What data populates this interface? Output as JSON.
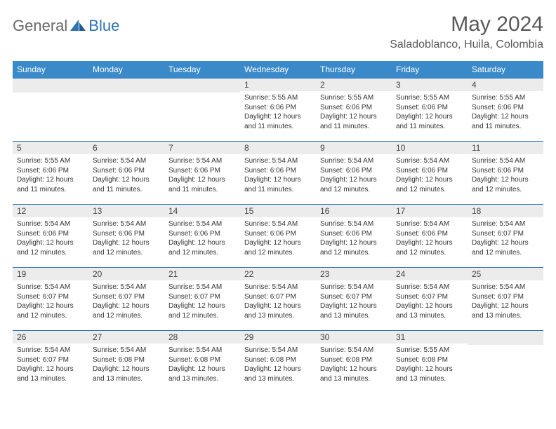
{
  "brand": {
    "general": "General",
    "blue": "Blue",
    "accent_color": "#2e74b5",
    "header_bg": "#3a8ac9",
    "text_color": "#595959"
  },
  "title": "May 2024",
  "location": "Saladoblanco, Huila, Colombia",
  "weekdays": [
    "Sunday",
    "Monday",
    "Tuesday",
    "Wednesday",
    "Thursday",
    "Friday",
    "Saturday"
  ],
  "weeks": [
    [
      {
        "n": "",
        "sr": "",
        "ss": "",
        "dl": ""
      },
      {
        "n": "",
        "sr": "",
        "ss": "",
        "dl": ""
      },
      {
        "n": "",
        "sr": "",
        "ss": "",
        "dl": ""
      },
      {
        "n": "1",
        "sr": "Sunrise: 5:55 AM",
        "ss": "Sunset: 6:06 PM",
        "dl": "Daylight: 12 hours and 11 minutes."
      },
      {
        "n": "2",
        "sr": "Sunrise: 5:55 AM",
        "ss": "Sunset: 6:06 PM",
        "dl": "Daylight: 12 hours and 11 minutes."
      },
      {
        "n": "3",
        "sr": "Sunrise: 5:55 AM",
        "ss": "Sunset: 6:06 PM",
        "dl": "Daylight: 12 hours and 11 minutes."
      },
      {
        "n": "4",
        "sr": "Sunrise: 5:55 AM",
        "ss": "Sunset: 6:06 PM",
        "dl": "Daylight: 12 hours and 11 minutes."
      }
    ],
    [
      {
        "n": "5",
        "sr": "Sunrise: 5:55 AM",
        "ss": "Sunset: 6:06 PM",
        "dl": "Daylight: 12 hours and 11 minutes."
      },
      {
        "n": "6",
        "sr": "Sunrise: 5:54 AM",
        "ss": "Sunset: 6:06 PM",
        "dl": "Daylight: 12 hours and 11 minutes."
      },
      {
        "n": "7",
        "sr": "Sunrise: 5:54 AM",
        "ss": "Sunset: 6:06 PM",
        "dl": "Daylight: 12 hours and 11 minutes."
      },
      {
        "n": "8",
        "sr": "Sunrise: 5:54 AM",
        "ss": "Sunset: 6:06 PM",
        "dl": "Daylight: 12 hours and 11 minutes."
      },
      {
        "n": "9",
        "sr": "Sunrise: 5:54 AM",
        "ss": "Sunset: 6:06 PM",
        "dl": "Daylight: 12 hours and 12 minutes."
      },
      {
        "n": "10",
        "sr": "Sunrise: 5:54 AM",
        "ss": "Sunset: 6:06 PM",
        "dl": "Daylight: 12 hours and 12 minutes."
      },
      {
        "n": "11",
        "sr": "Sunrise: 5:54 AM",
        "ss": "Sunset: 6:06 PM",
        "dl": "Daylight: 12 hours and 12 minutes."
      }
    ],
    [
      {
        "n": "12",
        "sr": "Sunrise: 5:54 AM",
        "ss": "Sunset: 6:06 PM",
        "dl": "Daylight: 12 hours and 12 minutes."
      },
      {
        "n": "13",
        "sr": "Sunrise: 5:54 AM",
        "ss": "Sunset: 6:06 PM",
        "dl": "Daylight: 12 hours and 12 minutes."
      },
      {
        "n": "14",
        "sr": "Sunrise: 5:54 AM",
        "ss": "Sunset: 6:06 PM",
        "dl": "Daylight: 12 hours and 12 minutes."
      },
      {
        "n": "15",
        "sr": "Sunrise: 5:54 AM",
        "ss": "Sunset: 6:06 PM",
        "dl": "Daylight: 12 hours and 12 minutes."
      },
      {
        "n": "16",
        "sr": "Sunrise: 5:54 AM",
        "ss": "Sunset: 6:06 PM",
        "dl": "Daylight: 12 hours and 12 minutes."
      },
      {
        "n": "17",
        "sr": "Sunrise: 5:54 AM",
        "ss": "Sunset: 6:06 PM",
        "dl": "Daylight: 12 hours and 12 minutes."
      },
      {
        "n": "18",
        "sr": "Sunrise: 5:54 AM",
        "ss": "Sunset: 6:07 PM",
        "dl": "Daylight: 12 hours and 12 minutes."
      }
    ],
    [
      {
        "n": "19",
        "sr": "Sunrise: 5:54 AM",
        "ss": "Sunset: 6:07 PM",
        "dl": "Daylight: 12 hours and 12 minutes."
      },
      {
        "n": "20",
        "sr": "Sunrise: 5:54 AM",
        "ss": "Sunset: 6:07 PM",
        "dl": "Daylight: 12 hours and 12 minutes."
      },
      {
        "n": "21",
        "sr": "Sunrise: 5:54 AM",
        "ss": "Sunset: 6:07 PM",
        "dl": "Daylight: 12 hours and 12 minutes."
      },
      {
        "n": "22",
        "sr": "Sunrise: 5:54 AM",
        "ss": "Sunset: 6:07 PM",
        "dl": "Daylight: 12 hours and 13 minutes."
      },
      {
        "n": "23",
        "sr": "Sunrise: 5:54 AM",
        "ss": "Sunset: 6:07 PM",
        "dl": "Daylight: 12 hours and 13 minutes."
      },
      {
        "n": "24",
        "sr": "Sunrise: 5:54 AM",
        "ss": "Sunset: 6:07 PM",
        "dl": "Daylight: 12 hours and 13 minutes."
      },
      {
        "n": "25",
        "sr": "Sunrise: 5:54 AM",
        "ss": "Sunset: 6:07 PM",
        "dl": "Daylight: 12 hours and 13 minutes."
      }
    ],
    [
      {
        "n": "26",
        "sr": "Sunrise: 5:54 AM",
        "ss": "Sunset: 6:07 PM",
        "dl": "Daylight: 12 hours and 13 minutes."
      },
      {
        "n": "27",
        "sr": "Sunrise: 5:54 AM",
        "ss": "Sunset: 6:08 PM",
        "dl": "Daylight: 12 hours and 13 minutes."
      },
      {
        "n": "28",
        "sr": "Sunrise: 5:54 AM",
        "ss": "Sunset: 6:08 PM",
        "dl": "Daylight: 12 hours and 13 minutes."
      },
      {
        "n": "29",
        "sr": "Sunrise: 5:54 AM",
        "ss": "Sunset: 6:08 PM",
        "dl": "Daylight: 12 hours and 13 minutes."
      },
      {
        "n": "30",
        "sr": "Sunrise: 5:54 AM",
        "ss": "Sunset: 6:08 PM",
        "dl": "Daylight: 12 hours and 13 minutes."
      },
      {
        "n": "31",
        "sr": "Sunrise: 5:55 AM",
        "ss": "Sunset: 6:08 PM",
        "dl": "Daylight: 12 hours and 13 minutes."
      },
      {
        "n": "",
        "sr": "",
        "ss": "",
        "dl": ""
      }
    ]
  ]
}
